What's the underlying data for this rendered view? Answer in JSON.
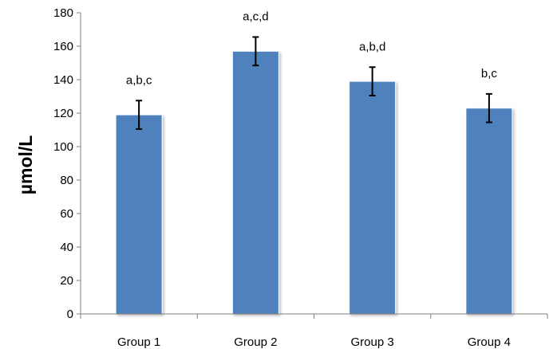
{
  "chart_data": {
    "type": "bar",
    "title": "",
    "xlabel": "",
    "ylabel": "µmol/L",
    "ylim": [
      0,
      180
    ],
    "yticks": [
      0,
      20,
      40,
      60,
      80,
      100,
      120,
      140,
      160,
      180
    ],
    "categories": [
      "Group 1",
      "Group 2",
      "Group 3",
      "Group 4"
    ],
    "values": [
      119,
      157,
      139,
      123
    ],
    "errors": [
      8.5,
      8.5,
      8.5,
      8.5
    ],
    "significance_labels": [
      "a,b,c",
      "a,c,d",
      "a,b,d",
      "b,c"
    ],
    "grid": false,
    "legend": "none",
    "bar_color": "#4F81BD"
  }
}
